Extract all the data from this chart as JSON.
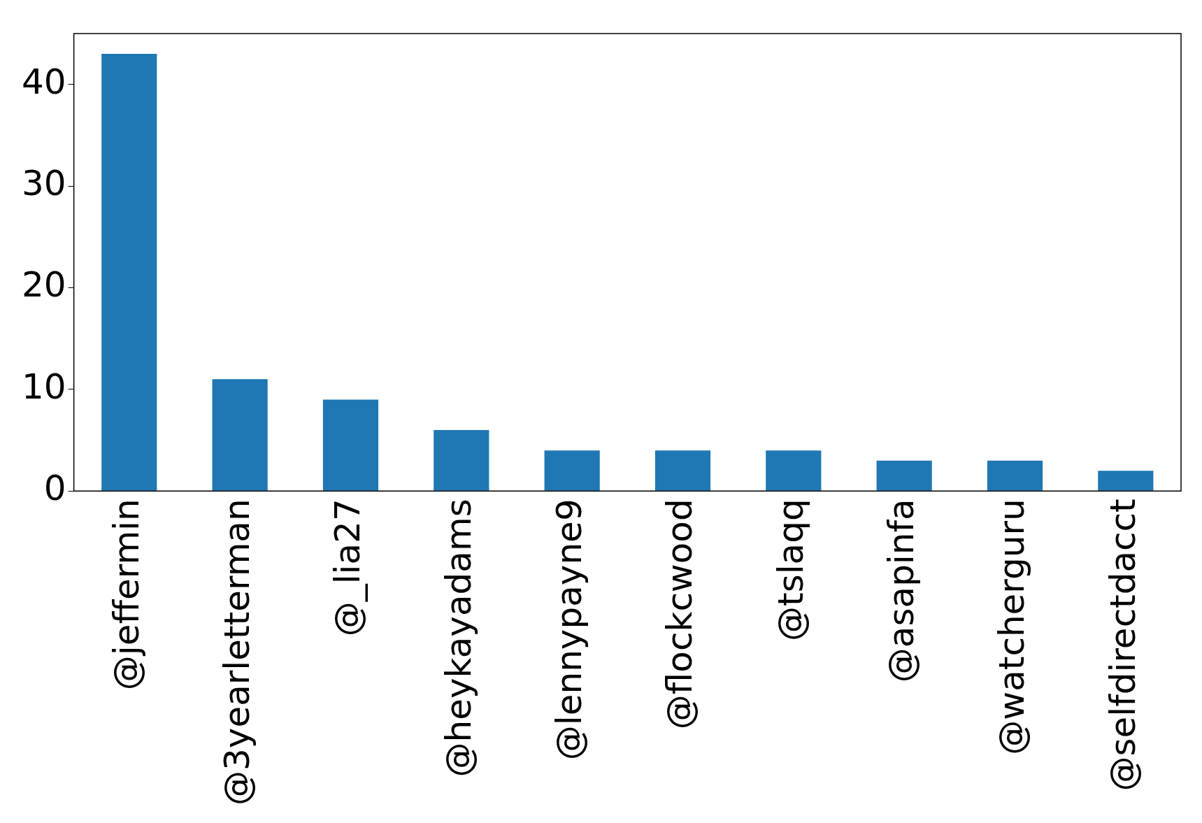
{
  "chart_data": {
    "type": "bar",
    "categories": [
      "@jeffermin",
      "@3yearletterman",
      "@_lia27",
      "@heykayadams",
      "@lennypayne9",
      "@flockcwood",
      "@tslaqq",
      "@asapinfa",
      "@watcherguru",
      "@selfdirectdacct"
    ],
    "values": [
      43,
      11,
      9,
      6,
      4,
      4,
      4,
      3,
      3,
      2
    ],
    "color": "#1f77b4",
    "ylim": [
      0,
      45
    ],
    "yticks": [
      0,
      10,
      20,
      30,
      40
    ],
    "grid": false,
    "legend": false
  }
}
